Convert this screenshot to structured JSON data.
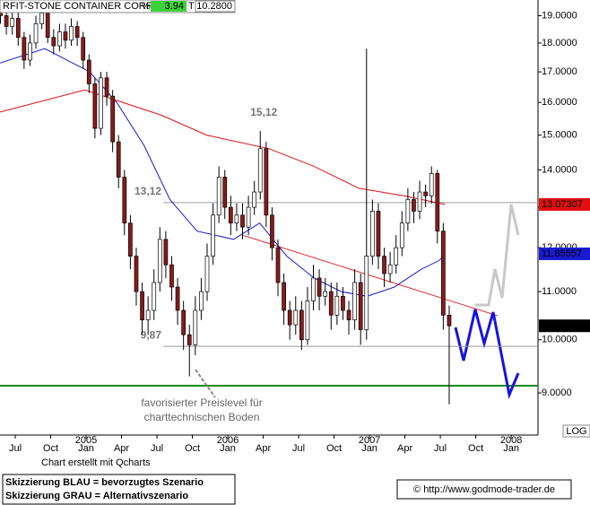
{
  "header": {
    "name": "RFIT-STONE CONTAINER CORP",
    "pct_label": "%",
    "change": "3.94",
    "t_label": "T",
    "last": "10.2800"
  },
  "notes": [
    "favorisierter Preislevel für",
    "charttechnischen Boden"
  ],
  "footer": {
    "log_label": "LOG",
    "credit": "Chart erstellt mit Qcharts",
    "legend": [
      "Skizzierung BLAU = bevorzugtes Szenario",
      "Skizzierung GRAU = Alternativszenario"
    ],
    "source": "© http://www.godmode-trader.de"
  },
  "chart_data": {
    "type": "candlestick",
    "log_scale": true,
    "up_color": "#ffffff",
    "down_color": "#8b1a1a",
    "wick_color": "#000000",
    "x": [
      4.75,
      5.25,
      5.75,
      6.25,
      6.75,
      7.25,
      7.75,
      8.25,
      8.75,
      9.25,
      9.75,
      10.25,
      10.75,
      11.25,
      11.75,
      12.25,
      12.75,
      13.25,
      13.75,
      14.25,
      14.75,
      15.25,
      15.75,
      16.25,
      16.75,
      17.25,
      17.75,
      18.25,
      18.75,
      19.25,
      19.75,
      20.25,
      20.75,
      21.25,
      21.75,
      22.25,
      22.75,
      23.25,
      23.75,
      24.25,
      24.75,
      25.25,
      25.75,
      26.25,
      26.75,
      27.25,
      27.75,
      28.25,
      28.75,
      29.25,
      29.75,
      30.25,
      30.75,
      31.25,
      31.75,
      32.25,
      32.75,
      33.25,
      33.75,
      34.25,
      34.75,
      35.25,
      35.75,
      36.25,
      36.75,
      37.25,
      37.75,
      38.25,
      38.75,
      39.25,
      39.75,
      40.25,
      40.75,
      41.25,
      41.75,
      42.25,
      42.75
    ],
    "open": [
      19.2,
      19.0,
      18.6,
      18.9,
      18.2,
      17.4,
      18.0,
      18.7,
      19.1,
      18.2,
      17.9,
      18.4,
      18.1,
      18.6,
      18.2,
      17.4,
      16.6,
      15.2,
      16.8,
      16.2,
      14.8,
      13.8,
      12.6,
      11.8,
      11.0,
      10.4,
      10.6,
      11.2,
      12.2,
      11.6,
      11.1,
      10.6,
      10.1,
      9.9,
      10.6,
      11.0,
      11.8,
      12.8,
      13.8,
      13.0,
      12.6,
      12.8,
      12.5,
      13.0,
      13.4,
      14.6,
      12.8,
      12.0,
      11.2,
      10.6,
      10.3,
      10.6,
      10.0,
      10.8,
      11.3,
      10.9,
      11.0,
      10.5,
      10.9,
      10.6,
      10.4,
      11.2,
      10.2,
      11.8,
      12.9,
      11.8,
      11.4,
      11.6,
      12.0,
      12.6,
      13.2,
      12.9,
      13.4,
      13.3,
      13.9,
      12.4,
      10.5
    ],
    "high": [
      19.5,
      19.3,
      19.2,
      19.1,
      18.4,
      18.3,
      19.0,
      19.4,
      19.3,
      18.5,
      18.7,
      18.7,
      18.9,
      18.8,
      18.4,
      17.6,
      16.8,
      17.0,
      17.0,
      16.4,
      15.0,
      14.0,
      12.8,
      12.0,
      11.2,
      10.9,
      11.5,
      12.5,
      12.4,
      11.8,
      11.3,
      10.8,
      10.3,
      10.9,
      11.3,
      12.1,
      13.1,
      14.1,
      14.0,
      13.3,
      13.1,
      13.1,
      13.3,
      13.7,
      15.12,
      14.8,
      13.0,
      12.2,
      11.4,
      10.8,
      10.9,
      10.8,
      11.1,
      11.6,
      11.5,
      11.3,
      11.2,
      11.2,
      11.1,
      10.8,
      11.5,
      11.4,
      17.8,
      13.2,
      13.1,
      12.0,
      11.9,
      12.3,
      12.9,
      13.5,
      13.4,
      13.7,
      13.6,
      14.1,
      14.0,
      12.6,
      10.7
    ],
    "low": [
      18.7,
      18.3,
      18.3,
      17.9,
      17.1,
      17.2,
      17.8,
      18.5,
      18.0,
      17.6,
      17.7,
      17.8,
      17.9,
      17.9,
      17.1,
      16.3,
      14.9,
      15.0,
      15.9,
      14.5,
      13.5,
      12.3,
      11.5,
      10.7,
      10.1,
      10.1,
      10.4,
      11.0,
      11.3,
      10.8,
      10.3,
      9.8,
      9.3,
      9.7,
      10.4,
      10.8,
      11.6,
      12.6,
      12.7,
      12.3,
      12.4,
      12.2,
      12.3,
      12.8,
      13.2,
      12.5,
      11.7,
      10.9,
      10.3,
      10.0,
      10.1,
      9.8,
      9.9,
      10.6,
      10.6,
      10.7,
      10.2,
      10.3,
      10.4,
      10.1,
      10.2,
      9.9,
      10.0,
      11.6,
      11.5,
      11.1,
      11.2,
      11.4,
      11.8,
      12.4,
      12.6,
      12.7,
      13.0,
      13.1,
      12.1,
      10.2,
      8.8
    ],
    "close": [
      19.0,
      18.6,
      18.9,
      18.2,
      17.4,
      18.0,
      18.7,
      19.1,
      18.2,
      17.9,
      18.4,
      18.1,
      18.6,
      18.2,
      17.4,
      16.6,
      15.2,
      16.8,
      16.2,
      14.8,
      13.8,
      12.6,
      11.8,
      11.0,
      10.4,
      10.6,
      11.2,
      12.2,
      11.6,
      11.1,
      10.6,
      10.1,
      9.9,
      10.6,
      11.0,
      11.8,
      12.8,
      13.8,
      13.0,
      12.6,
      12.8,
      12.5,
      13.0,
      13.4,
      14.6,
      12.8,
      12.0,
      11.2,
      10.6,
      10.3,
      10.6,
      10.0,
      10.8,
      11.3,
      10.9,
      11.0,
      10.5,
      10.9,
      10.6,
      10.4,
      11.2,
      10.2,
      11.8,
      12.9,
      11.8,
      11.4,
      11.6,
      12.0,
      12.6,
      13.2,
      12.9,
      13.4,
      13.3,
      13.9,
      12.4,
      10.5,
      10.28
    ],
    "lines": [
      {
        "color": "#e01010",
        "x": [
          4.71,
          11.9,
          18.4,
          22.2,
          27.5,
          31.3,
          35.1,
          38.9,
          42.4
        ],
        "values": [
          15.7,
          16.4,
          15.6,
          15.0,
          14.6,
          14.1,
          13.5,
          13.3,
          13.07307
        ]
      },
      {
        "color": "#1a1ad0",
        "x": [
          4.71,
          8.5,
          12.3,
          14.6,
          16.9,
          19.1,
          21.4,
          24.5,
          26.7,
          29.0,
          31.3,
          33.6,
          35.8,
          38.1,
          40.4,
          41.9,
          42.4
        ],
        "values": [
          17.3,
          17.8,
          17.0,
          16.0,
          14.7,
          13.2,
          12.4,
          12.2,
          12.6,
          11.8,
          11.3,
          11.0,
          10.9,
          11.1,
          11.5,
          11.7,
          11.85557
        ]
      }
    ],
    "price_labels": [
      {
        "value": 13.07307,
        "color": "#e01010",
        "text_color": "#ffffff"
      },
      {
        "value": 11.85557,
        "color": "#1a1ad0",
        "text_color": "#ffffff"
      },
      {
        "value": {
          "value": 10.28,
          "label": "10.2800"
        },
        "color": "#000000",
        "text_color": "#ffffff"
      }
    ],
    "levels": [
      {
        "value": 13.12,
        "label": "13,12"
      },
      {
        "value": 9.87,
        "label": "9,87"
      }
    ],
    "peak": {
      "x": 26.75,
      "value": 15.12,
      "label": "15,12"
    },
    "ylim": [
      8.28,
      19.6
    ],
    "yticks": [
      {
        "value": 9,
        "label": "9.0000"
      },
      {
        "value": 10,
        "label": "10.0000"
      },
      {
        "value": 11,
        "label": "11.0000"
      },
      {
        "value": 12,
        "label": "12.0000"
      },
      {
        "value": 13,
        "label": "13.0000"
      },
      {
        "value": 14,
        "label": "14.0000"
      },
      {
        "value": 15,
        "label": "15.0000"
      },
      {
        "value": 16,
        "label": "16.0000"
      },
      {
        "value": 17,
        "label": "17.0000"
      },
      {
        "value": 18,
        "label": "18.0000"
      },
      {
        "value": 19,
        "label": "19.0000"
      }
    ],
    "xlim": [
      4.71,
      50.27
    ],
    "xticks": [
      {
        "value": 6,
        "label": "Jul"
      },
      {
        "value": 9,
        "label": "Oct"
      },
      {
        "value": 12,
        "label": "Jan",
        "year": "2005"
      },
      {
        "value": 15,
        "label": "Apr"
      },
      {
        "value": 18,
        "label": "Jul"
      },
      {
        "value": 21,
        "label": "Oct"
      },
      {
        "value": 24,
        "label": "Jan",
        "year": "2006"
      },
      {
        "value": 27,
        "label": "Apr"
      },
      {
        "value": 30,
        "label": "Jul"
      },
      {
        "value": 33,
        "label": "Oct"
      },
      {
        "value": 36,
        "label": "Jan",
        "year": "2007"
      },
      {
        "value": 39,
        "label": "Apr"
      },
      {
        "value": 42,
        "label": "Jul"
      },
      {
        "value": 45,
        "label": "Oct"
      },
      {
        "value": 48,
        "label": "Jan",
        "year": "2008"
      }
    ]
  }
}
